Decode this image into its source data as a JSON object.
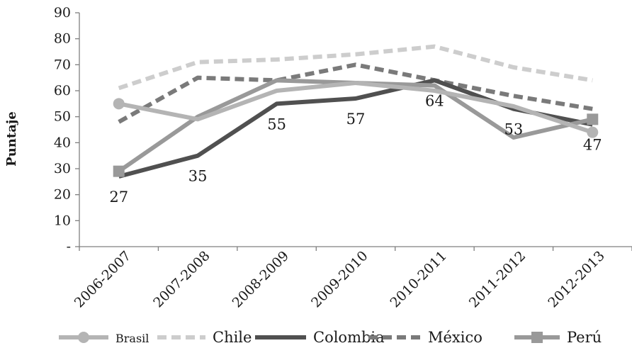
{
  "chart_data": {
    "type": "line",
    "ylabel": "Puntaje",
    "xlabel": "",
    "ylim": [
      0,
      90
    ],
    "yticks": [
      "-",
      "10",
      "20",
      "30",
      "40",
      "50",
      "60",
      "70",
      "80",
      "90"
    ],
    "categories": [
      "2006-2007",
      "2007-2008",
      "2008-2009",
      "2009-2010",
      "2010-2011",
      "2011-2012",
      "2012-2013"
    ],
    "series": [
      {
        "name": "Brasil",
        "values": [
          55,
          49,
          60,
          63,
          60,
          54,
          44
        ],
        "color": "#b4b4b4",
        "style": "solid",
        "marker": "circle"
      },
      {
        "name": "Chile",
        "values": [
          61,
          71,
          72,
          74,
          77,
          69,
          64
        ],
        "color": "#cdcdcd",
        "style": "dashed",
        "marker": "none"
      },
      {
        "name": "Colombia",
        "values": [
          27,
          35,
          55,
          57,
          64,
          53,
          47
        ],
        "color": "#505050",
        "style": "solid",
        "marker": "none"
      },
      {
        "name": "México",
        "values": [
          48,
          65,
          64,
          70,
          64,
          58,
          53
        ],
        "color": "#7a7a7a",
        "style": "dashed",
        "marker": "none"
      },
      {
        "name": "Perú",
        "values": [
          29,
          50,
          64,
          63,
          62,
          42,
          49
        ],
        "color": "#999999",
        "style": "solid",
        "marker": "square"
      }
    ],
    "data_labels": {
      "series": "Colombia",
      "values": [
        "27",
        "35",
        "55",
        "57",
        "64",
        "53",
        "47"
      ]
    },
    "grid": false,
    "legend": "bottom"
  }
}
